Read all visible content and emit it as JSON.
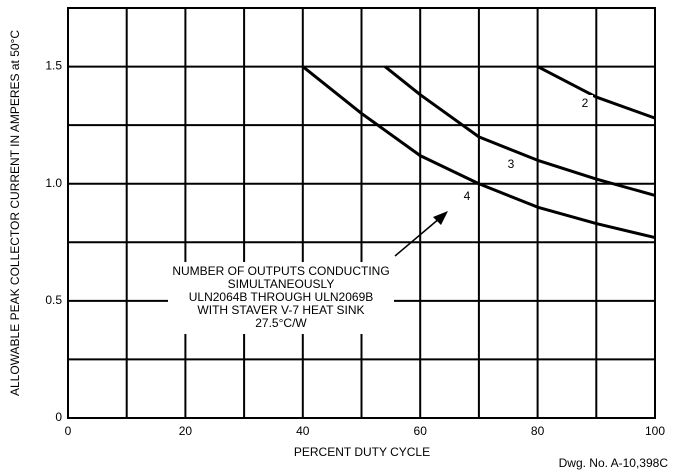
{
  "chart_data": {
    "type": "line",
    "xlabel": "PERCENT DUTY CYCLE",
    "ylabel": "ALLOWABLE PEAK COLLECTOR CURRENT IN AMPERES at 50°C",
    "annotation": [
      "NUMBER OF OUTPUTS CONDUCTING",
      "SIMULTANEOUSLY",
      "ULN2064B THROUGH ULN2069B",
      "WITH STAVER V-7 HEAT SINK",
      "27.5°C/W"
    ],
    "drawing_number": "Dwg. No. A-10,398C",
    "xlim": [
      0,
      100
    ],
    "xticks": [
      0,
      20,
      40,
      60,
      80,
      100
    ],
    "xminor": [
      10,
      30,
      50,
      70,
      90
    ],
    "ylim": [
      0,
      1.75
    ],
    "yticks": [
      0,
      0.5,
      {
        "value": 1,
        "label": "1.0"
      },
      1.5
    ],
    "yminor": [
      0.25,
      0.75,
      1.25
    ],
    "grid": true,
    "color": "#000000",
    "series": [
      {
        "name": "2",
        "x": [
          80,
          90,
          100
        ],
        "values": [
          1.5,
          1.37,
          1.28
        ]
      },
      {
        "name": "3",
        "x": [
          54,
          60,
          70,
          80,
          90,
          100
        ],
        "values": [
          1.5,
          1.38,
          1.2,
          1.1,
          1.02,
          0.95
        ]
      },
      {
        "name": "4",
        "x": [
          40,
          50,
          60,
          70,
          80,
          90,
          100
        ],
        "values": [
          1.5,
          1.3,
          1.12,
          1.0,
          0.9,
          0.83,
          0.77
        ]
      }
    ]
  }
}
